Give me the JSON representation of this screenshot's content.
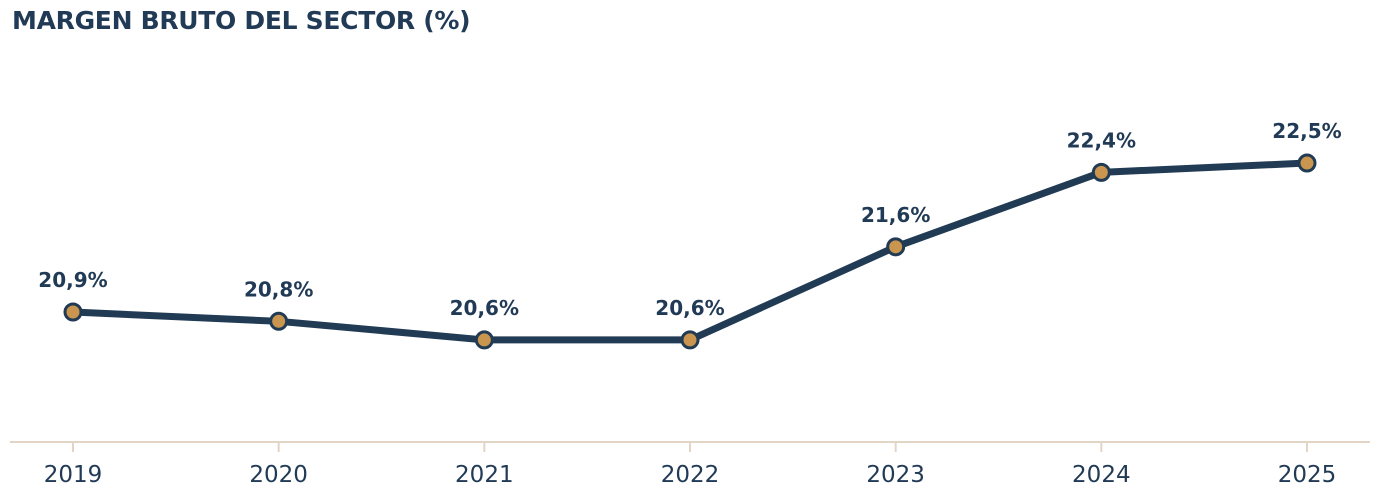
{
  "chart_data": {
    "type": "line",
    "title": "MARGEN BRUTO DEL SECTOR (%)",
    "xlabel": "",
    "ylabel": "",
    "categories": [
      "2019",
      "2020",
      "2021",
      "2022",
      "2023",
      "2024",
      "2025"
    ],
    "series": [
      {
        "values": [
          20.9,
          20.8,
          20.6,
          20.6,
          21.6,
          22.4,
          22.5
        ],
        "labels": [
          "20,9%",
          "20,8%",
          "20,6%",
          "20,6%",
          "21,6%",
          "22,4%",
          "22,5%"
        ]
      }
    ],
    "grid": false,
    "legend": "none",
    "colors": {
      "line": "#223b55",
      "marker_fill": "#c9954f",
      "axis": "#e3d5c6",
      "text": "#213a55"
    }
  }
}
